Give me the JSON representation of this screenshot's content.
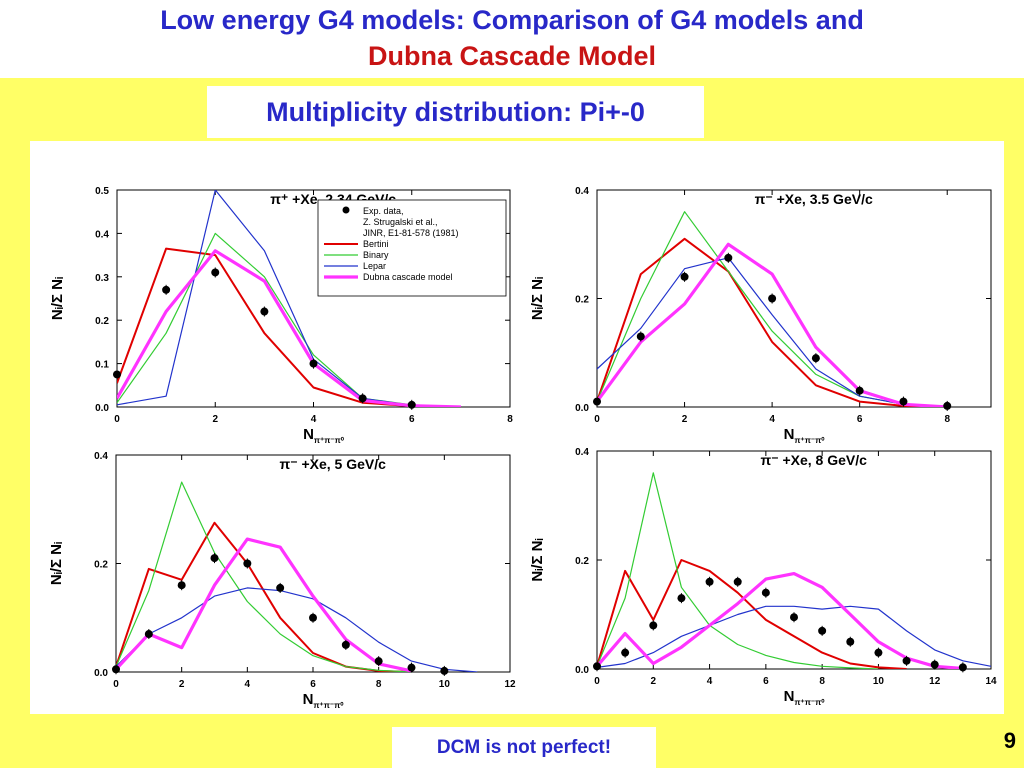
{
  "slide": {
    "title_line1": "Low energy G4 models: Comparison of G4 models and",
    "title_line2": "Dubna Cascade Model",
    "subtitle": "Multiplicity distribution: Pi+-0",
    "footer": "DCM is not perfect!",
    "page_number": "9"
  },
  "colors": {
    "title_blue": "#2828c8",
    "title_red": "#c81414",
    "background_band": "#ffff66",
    "bertini": "#e00000",
    "binary": "#33cc33",
    "lepar": "#2233cc",
    "dubna": "#ff33ff",
    "exp": "#000000"
  },
  "chart_data": [
    {
      "type": "line",
      "title": "π⁺ +Xe, 2.34 GeV/c",
      "title_main": "+Xe, 2.34 GeV/c",
      "xlabel": "N",
      "xlabel_sub": "π⁺π⁻π⁰",
      "ylabel": "Nᵢ/Σ Nᵢ",
      "xlim": [
        0,
        8
      ],
      "ylim": [
        0,
        0.5
      ],
      "xticks": [
        0,
        2,
        4,
        6,
        8
      ],
      "yticks": [
        0.0,
        0.1,
        0.2,
        0.3,
        0.4,
        0.5
      ],
      "xtick_labels": [
        "0",
        "2",
        "4",
        "6",
        "8"
      ],
      "ytick_labels": [
        "0.0",
        "0.1",
        "0.2",
        "0.3",
        "0.4",
        "0.5"
      ],
      "legend": {
        "entries": [
          "Exp. data,",
          "Z. Strugalski et al.,",
          "JINR, E1-81-578 (1981)",
          "Bertini",
          "Binary",
          "Lepar",
          "Dubna cascade model"
        ]
      },
      "exp": {
        "name": "Exp. data",
        "x": [
          0,
          1,
          2,
          3,
          4,
          5,
          6
        ],
        "y": [
          0.075,
          0.27,
          0.31,
          0.22,
          0.1,
          0.02,
          0.005
        ]
      },
      "series": [
        {
          "name": "Bertini",
          "key": "bertini",
          "x": [
            0,
            1,
            2,
            3,
            4,
            5,
            6,
            7
          ],
          "y": [
            0.055,
            0.365,
            0.35,
            0.17,
            0.045,
            0.01,
            0.002,
            0.0
          ]
        },
        {
          "name": "Binary",
          "key": "binary",
          "x": [
            0,
            1,
            2,
            3,
            4,
            5,
            6,
            7
          ],
          "y": [
            0.01,
            0.17,
            0.4,
            0.3,
            0.12,
            0.02,
            0.005,
            0.0
          ]
        },
        {
          "name": "Lepar",
          "key": "lepar",
          "x": [
            0,
            1,
            2,
            3,
            4,
            5,
            6,
            7
          ],
          "y": [
            0.005,
            0.025,
            0.5,
            0.36,
            0.11,
            0.02,
            0.004,
            0.0
          ]
        },
        {
          "name": "Dubna cascade model",
          "key": "dubna",
          "x": [
            0,
            1,
            2,
            3,
            4,
            5,
            6,
            7
          ],
          "y": [
            0.02,
            0.22,
            0.36,
            0.29,
            0.1,
            0.015,
            0.003,
            0.0
          ]
        }
      ]
    },
    {
      "type": "line",
      "title": "π⁻ +Xe, 3.5 GeV/c",
      "title_main": "+Xe, 3.5 GeV/c",
      "xlabel": "N",
      "xlabel_sub": "π⁺π⁻π⁰",
      "ylabel": "Nᵢ/Σ Nᵢ",
      "xlim": [
        0,
        9
      ],
      "ylim": [
        0,
        0.4
      ],
      "xticks": [
        0,
        2,
        4,
        6,
        8
      ],
      "yticks": [
        0.0,
        0.2,
        0.4
      ],
      "xtick_labels": [
        "0",
        "2",
        "4",
        "6",
        "8"
      ],
      "ytick_labels": [
        "0.0",
        "0.2",
        "0.4"
      ],
      "exp": {
        "name": "Exp. data",
        "x": [
          0,
          1,
          2,
          3,
          4,
          5,
          6,
          7,
          8
        ],
        "y": [
          0.01,
          0.13,
          0.24,
          0.275,
          0.2,
          0.09,
          0.03,
          0.01,
          0.002
        ]
      },
      "series": [
        {
          "name": "Bertini",
          "key": "bertini",
          "x": [
            0,
            1,
            2,
            3,
            4,
            5,
            6,
            7,
            8
          ],
          "y": [
            0.01,
            0.245,
            0.31,
            0.25,
            0.12,
            0.04,
            0.01,
            0.002,
            0.0
          ]
        },
        {
          "name": "Binary",
          "key": "binary",
          "x": [
            0,
            1,
            2,
            3,
            4,
            5,
            6,
            7,
            8
          ],
          "y": [
            0.01,
            0.2,
            0.36,
            0.25,
            0.14,
            0.06,
            0.02,
            0.005,
            0.0
          ]
        },
        {
          "name": "Lepar",
          "key": "lepar",
          "x": [
            0,
            1,
            2,
            3,
            4,
            5,
            6,
            7,
            8
          ],
          "y": [
            0.07,
            0.145,
            0.255,
            0.275,
            0.17,
            0.07,
            0.02,
            0.005,
            0.0
          ]
        },
        {
          "name": "Dubna cascade model",
          "key": "dubna",
          "x": [
            0,
            1,
            2,
            3,
            4,
            5,
            6,
            7,
            8
          ],
          "y": [
            0.01,
            0.12,
            0.19,
            0.3,
            0.245,
            0.11,
            0.03,
            0.005,
            0.0
          ]
        }
      ]
    },
    {
      "type": "line",
      "title": "π⁻ +Xe, 5 GeV/c",
      "title_main": "+Xe, 5 GeV/c",
      "xlabel": "N",
      "xlabel_sub": "π⁺π⁻π⁰",
      "ylabel": "Nᵢ/Σ Nᵢ",
      "xlim": [
        0,
        12
      ],
      "ylim": [
        0,
        0.4
      ],
      "xticks": [
        0,
        2,
        4,
        6,
        8,
        10,
        12
      ],
      "yticks": [
        0.0,
        0.2,
        0.4
      ],
      "xtick_labels": [
        "0",
        "2",
        "4",
        "6",
        "8",
        "10",
        "12"
      ],
      "ytick_labels": [
        "0.0",
        "0.2",
        "0.4"
      ],
      "exp": {
        "name": "Exp. data",
        "x": [
          0,
          1,
          2,
          3,
          4,
          5,
          6,
          7,
          8,
          9,
          10
        ],
        "y": [
          0.005,
          0.07,
          0.16,
          0.21,
          0.2,
          0.155,
          0.1,
          0.05,
          0.02,
          0.008,
          0.002
        ]
      },
      "series": [
        {
          "name": "Bertini",
          "key": "bertini",
          "x": [
            0,
            1,
            2,
            3,
            4,
            5,
            6,
            7,
            8,
            9
          ],
          "y": [
            0.01,
            0.19,
            0.17,
            0.275,
            0.2,
            0.1,
            0.035,
            0.01,
            0.002,
            0.0
          ]
        },
        {
          "name": "Binary",
          "key": "binary",
          "x": [
            0,
            1,
            2,
            3,
            4,
            5,
            6,
            7,
            8,
            9
          ],
          "y": [
            0.01,
            0.15,
            0.35,
            0.22,
            0.13,
            0.07,
            0.03,
            0.01,
            0.003,
            0.0
          ]
        },
        {
          "name": "Lepar",
          "key": "lepar",
          "x": [
            0,
            1,
            2,
            3,
            4,
            5,
            6,
            7,
            8,
            9,
            10,
            11
          ],
          "y": [
            0.01,
            0.07,
            0.1,
            0.14,
            0.155,
            0.15,
            0.135,
            0.1,
            0.055,
            0.02,
            0.005,
            0.0
          ]
        },
        {
          "name": "Dubna cascade model",
          "key": "dubna",
          "x": [
            0,
            1,
            2,
            3,
            4,
            5,
            6,
            7,
            8,
            9
          ],
          "y": [
            0.005,
            0.07,
            0.045,
            0.16,
            0.245,
            0.23,
            0.14,
            0.06,
            0.015,
            0.002
          ]
        }
      ]
    },
    {
      "type": "line",
      "title": "π⁻ +Xe, 8 GeV/c",
      "title_main": "+Xe, 8 GeV/c",
      "xlabel": "N",
      "xlabel_sub": "π⁺π⁻π⁰",
      "ylabel": "Nᵢ/Σ Nᵢ",
      "xlim": [
        0,
        14
      ],
      "ylim": [
        0,
        0.4
      ],
      "xticks": [
        0,
        2,
        4,
        6,
        8,
        10,
        12,
        14
      ],
      "yticks": [
        0.0,
        0.2,
        0.4
      ],
      "xtick_labels": [
        "0",
        "2",
        "4",
        "6",
        "8",
        "10",
        "12",
        "14"
      ],
      "ytick_labels": [
        "0.0",
        "0.2",
        "0.4"
      ],
      "exp": {
        "name": "Exp. data",
        "x": [
          0,
          1,
          2,
          3,
          4,
          5,
          6,
          7,
          8,
          9,
          10,
          11,
          12,
          13
        ],
        "y": [
          0.005,
          0.03,
          0.08,
          0.13,
          0.16,
          0.16,
          0.14,
          0.095,
          0.07,
          0.05,
          0.03,
          0.015,
          0.008,
          0.003
        ]
      },
      "series": [
        {
          "name": "Bertini",
          "key": "bertini",
          "x": [
            0,
            1,
            2,
            3,
            4,
            5,
            6,
            7,
            8,
            9,
            10,
            11
          ],
          "y": [
            0.005,
            0.18,
            0.09,
            0.2,
            0.18,
            0.14,
            0.09,
            0.06,
            0.03,
            0.01,
            0.003,
            0.0
          ]
        },
        {
          "name": "Binary",
          "key": "binary",
          "x": [
            0,
            1,
            2,
            3,
            4,
            5,
            6,
            7,
            8,
            9,
            10
          ],
          "y": [
            0.005,
            0.13,
            0.36,
            0.15,
            0.08,
            0.045,
            0.025,
            0.012,
            0.005,
            0.002,
            0.0
          ]
        },
        {
          "name": "Lepar",
          "key": "lepar",
          "x": [
            0,
            1,
            2,
            3,
            4,
            5,
            6,
            7,
            8,
            9,
            10,
            11,
            12,
            13,
            14
          ],
          "y": [
            0.003,
            0.01,
            0.03,
            0.06,
            0.08,
            0.1,
            0.115,
            0.115,
            0.11,
            0.115,
            0.11,
            0.07,
            0.035,
            0.015,
            0.005
          ]
        },
        {
          "name": "Dubna cascade model",
          "key": "dubna",
          "x": [
            0,
            1,
            2,
            3,
            4,
            5,
            6,
            7,
            8,
            9,
            10,
            11,
            12,
            13
          ],
          "y": [
            0.005,
            0.065,
            0.01,
            0.04,
            0.08,
            0.12,
            0.165,
            0.175,
            0.15,
            0.1,
            0.05,
            0.02,
            0.005,
            0.001
          ]
        }
      ]
    }
  ]
}
